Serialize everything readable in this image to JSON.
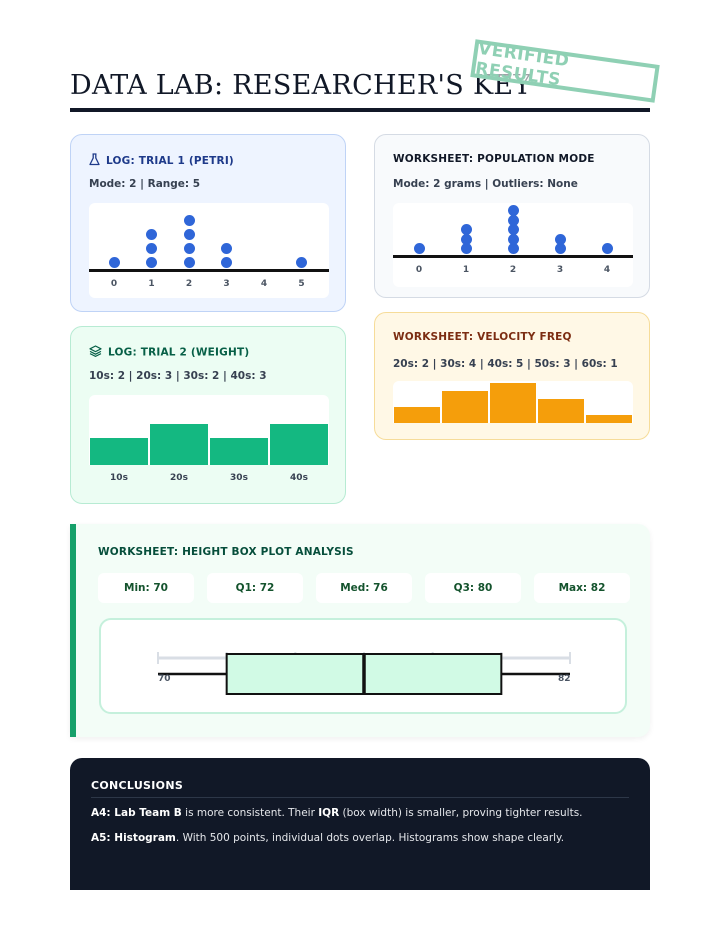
{
  "page": {
    "title": "DATA LAB: RESEARCHER'S KEY",
    "stamp": "VERIFIED RESULTS"
  },
  "cards": {
    "trial1": {
      "title": "LOG: TRIAL 1 (PETRI)",
      "icon": "flask-icon",
      "subtitle": "Mode: 2 | Range: 5",
      "accent": "#1e3a8a"
    },
    "population": {
      "title": "WORKSHEET: POPULATION MODE",
      "subtitle": "Mode: 2 grams | Outliers: None",
      "accent": "#111827"
    },
    "trial2": {
      "title": "LOG: TRIAL 2 (WEIGHT)",
      "icon": "layers-icon",
      "subtitle": "10s: 2 | 20s: 3 | 30s: 2 | 40s: 3",
      "accent": "#065f46"
    },
    "velocity": {
      "title": "WORKSHEET: VELOCITY FREQ",
      "subtitle": "20s: 2 | 30s: 4 | 40s: 5 | 50s: 3 | 60s: 1",
      "accent": "#7c2d12"
    },
    "boxplot": {
      "title": "WORKSHEET: HEIGHT BOX PLOT ANALYSIS",
      "stats": [
        "Min: 70",
        "Q1: 72",
        "Med: 76",
        "Q3: 80",
        "Max: 82"
      ],
      "axis_start": "70",
      "axis_end": "82",
      "accent": "#059669"
    }
  },
  "conclusions": {
    "title": "CONCLUSIONS",
    "a4_bold": "A4: Lab Team B",
    "a4_text1": " is more consistent. Their ",
    "a4_bold2": "IQR",
    "a4_text2": " (box width) is smaller, proving tighter results.",
    "a5_bold": "A5: Histogram",
    "a5_text": ". With 500 points, individual dots overlap. Histograms show shape clearly."
  },
  "colors": {
    "dot_blue": "#2f66d8",
    "green_bar": "#14b881",
    "orange_bar": "#f59e0b",
    "box_fill": "#d1fae5"
  },
  "chart_data": [
    {
      "type": "scatter",
      "subtype": "dot-plot",
      "x": [
        0,
        1,
        2,
        3,
        4,
        5
      ],
      "counts": [
        1,
        3,
        4,
        2,
        0,
        1
      ],
      "tick_labels": [
        "0",
        "1",
        "2",
        "3",
        "4",
        "5"
      ]
    },
    {
      "type": "scatter",
      "subtype": "dot-plot",
      "x": [
        0,
        1,
        2,
        3,
        4
      ],
      "counts": [
        1,
        3,
        5,
        2,
        1
      ],
      "tick_labels": [
        "0",
        "1",
        "2",
        "3",
        "4"
      ]
    },
    {
      "type": "bar",
      "subtype": "histogram",
      "categories": [
        "10s",
        "20s",
        "30s",
        "40s"
      ],
      "values": [
        2,
        3,
        2,
        3
      ],
      "ylim": [
        0,
        3.5
      ]
    },
    {
      "type": "bar",
      "subtype": "histogram",
      "categories": [
        "20s",
        "30s",
        "40s",
        "50s",
        "60s"
      ],
      "values": [
        2,
        4,
        5,
        3,
        1
      ],
      "ylim": [
        0,
        5
      ]
    },
    {
      "type": "box",
      "min": 70,
      "q1": 72,
      "median": 76,
      "q3": 80,
      "max": 82,
      "xlim": [
        70,
        82
      ]
    }
  ]
}
